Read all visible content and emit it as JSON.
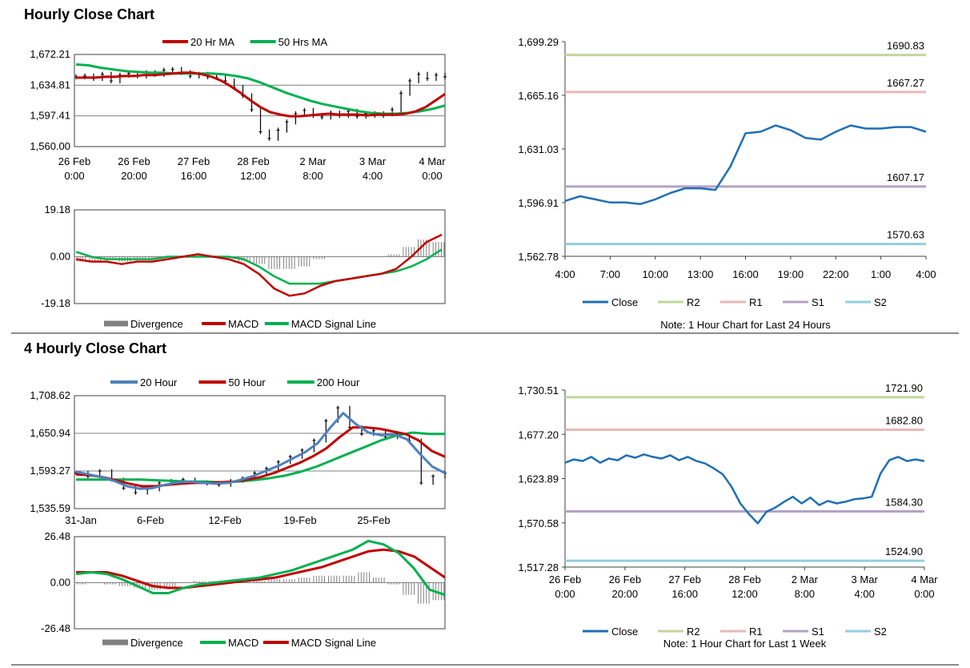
{
  "sections": {
    "hourly_title": "Hourly Close Chart",
    "four_hourly_title": "4 Hourly Close Chart"
  },
  "colors": {
    "ma20": "#c00000",
    "ma50": "#00b050",
    "ma20_blue": "#4f81bd",
    "close": "#1f6fb4",
    "r2": "#c3d69b",
    "r1": "#e6b9b8",
    "s1": "#b3a2c7",
    "s2": "#93cddd",
    "divergence": "#808080",
    "grid": "#808080"
  },
  "chart_data": [
    {
      "id": "hourly-price",
      "type": "line",
      "legend": [
        {
          "name": "20 Hr MA",
          "color": "#c00000"
        },
        {
          "name": "50 Hrs MA",
          "color": "#00b050"
        }
      ],
      "y_ticks": [
        "1,672.21",
        "1,634.81",
        "1,597.41",
        "1,560.00"
      ],
      "ylim": [
        1560.0,
        1672.21
      ],
      "x_ticks": [
        [
          "26 Feb",
          "0:00"
        ],
        [
          "26 Feb",
          "20:00"
        ],
        [
          "27 Feb",
          "16:00"
        ],
        [
          "28 Feb",
          "12:00"
        ],
        [
          "2 Mar",
          "8:00"
        ],
        [
          "3 Mar",
          "4:00"
        ],
        [
          "4 Mar",
          "0:00"
        ]
      ],
      "series": [
        {
          "name": "Close",
          "values": [
            1645,
            1646,
            1643,
            1648,
            1640,
            1647,
            1649,
            1646,
            1650,
            1648,
            1653,
            1654,
            1650,
            1646,
            1648,
            1645,
            1644,
            1640,
            1632,
            1622,
            1605,
            1578,
            1570,
            1580,
            1590,
            1600,
            1604,
            1598,
            1596,
            1601,
            1598,
            1603,
            1597,
            1600,
            1598,
            1600,
            1605,
            1625,
            1640,
            1648,
            1643,
            1647,
            1645
          ]
        },
        {
          "name": "20 Hr MA",
          "values": [
            1644,
            1644,
            1644,
            1645,
            1645,
            1646,
            1646,
            1647,
            1647,
            1648,
            1649,
            1650,
            1650,
            1648,
            1645,
            1640,
            1633,
            1625,
            1616,
            1608,
            1602,
            1599,
            1597,
            1597,
            1598,
            1599,
            1600,
            1599,
            1599,
            1599,
            1598,
            1599,
            1599,
            1599,
            1600,
            1603,
            1608,
            1616,
            1624
          ]
        },
        {
          "name": "50 Hrs MA",
          "values": [
            1660,
            1659,
            1656,
            1654,
            1652,
            1651,
            1650,
            1650,
            1649,
            1649,
            1649,
            1649,
            1648,
            1646,
            1643,
            1638,
            1632,
            1626,
            1621,
            1616,
            1612,
            1609,
            1606,
            1603,
            1601,
            1600,
            1600,
            1601,
            1603,
            1606,
            1610
          ]
        }
      ]
    },
    {
      "id": "hourly-macd",
      "type": "line",
      "legend": [
        {
          "name": "Divergence",
          "color": "#808080"
        },
        {
          "name": "MACD",
          "color": "#c00000"
        },
        {
          "name": "MACD Signal Line",
          "color": "#00b050"
        }
      ],
      "y_ticks": [
        "19.18",
        "0.00",
        "-19.18"
      ],
      "ylim": [
        -19.18,
        19.18
      ],
      "series": [
        {
          "name": "MACD",
          "values": [
            -1,
            -2,
            -2,
            -3,
            -2,
            -2,
            -1,
            0,
            1,
            0,
            -1,
            -3,
            -7,
            -13,
            -16,
            -15,
            -12,
            -10,
            -9,
            -8,
            -7,
            -5,
            0,
            6,
            9
          ]
        },
        {
          "name": "MACD Signal Line",
          "values": [
            2,
            0,
            -1,
            -1,
            -1,
            -1,
            0,
            0,
            0,
            0,
            0,
            -1,
            -4,
            -8,
            -11,
            -11,
            -11,
            -10,
            -9,
            -8,
            -7,
            -6,
            -4,
            -1,
            3
          ]
        },
        {
          "name": "Divergence",
          "values": [
            -2,
            -2,
            -1,
            -2,
            -1,
            -1,
            -1,
            0,
            1,
            0,
            -1,
            -2,
            -3,
            -5,
            -5,
            -4,
            -1,
            0,
            0,
            0,
            0,
            1,
            4,
            7,
            6
          ]
        }
      ]
    },
    {
      "id": "hourly-levels",
      "type": "line",
      "y_ticks": [
        "1,699.29",
        "1,665.16",
        "1,631.03",
        "1,596.91",
        "1,562.78"
      ],
      "ylim": [
        1562.78,
        1699.29
      ],
      "x_ticks": [
        "4:00",
        "7:00",
        "10:00",
        "13:00",
        "16:00",
        "19:00",
        "22:00",
        "1:00",
        "4:00"
      ],
      "x": [
        "4:00",
        "5:00",
        "6:00",
        "7:00",
        "8:00",
        "9:00",
        "10:00",
        "11:00",
        "12:00",
        "13:00",
        "14:00",
        "15:00",
        "16:00",
        "17:00",
        "18:00",
        "19:00",
        "20:00",
        "21:00",
        "22:00",
        "23:00",
        "0:00",
        "1:00",
        "2:00",
        "3:00",
        "4:00"
      ],
      "series": [
        {
          "name": "Close",
          "values": [
            1598,
            1601,
            1599,
            1597,
            1597,
            1596,
            1599,
            1603,
            1606,
            1606,
            1605,
            1620,
            1641,
            1642,
            1646,
            1643,
            1638,
            1637,
            1642,
            1646,
            1644,
            1644,
            1645,
            1645,
            1642
          ]
        }
      ],
      "levels": [
        {
          "name": "R2",
          "value": 1690.83,
          "label": "1690.83"
        },
        {
          "name": "R1",
          "value": 1667.27,
          "label": "1667.27"
        },
        {
          "name": "S1",
          "value": 1607.17,
          "label": "1607.17"
        },
        {
          "name": "S2",
          "value": 1570.63,
          "label": "1570.63"
        }
      ],
      "legend": [
        {
          "name": "Close"
        },
        {
          "name": "R2"
        },
        {
          "name": "R1"
        },
        {
          "name": "S1"
        },
        {
          "name": "S2"
        }
      ],
      "note": "Note: 1 Hour Chart for Last 24 Hours"
    },
    {
      "id": "four-hourly-price",
      "type": "line",
      "legend": [
        {
          "name": "20 Hour",
          "color": "#4f81bd"
        },
        {
          "name": "50 Hour",
          "color": "#c00000"
        },
        {
          "name": "200 Hour",
          "color": "#00b050"
        }
      ],
      "y_ticks": [
        "1,708.62",
        "1,650.94",
        "1,593.27",
        "1,535.59"
      ],
      "ylim": [
        1535.59,
        1708.62
      ],
      "x_ticks": [
        "31-Jan",
        "6-Feb",
        "12-Feb",
        "19-Feb",
        "25-Feb"
      ],
      "series": [
        {
          "name": "Close",
          "values": [
            1590,
            1585,
            1593,
            1580,
            1567,
            1560,
            1565,
            1575,
            1578,
            1580,
            1576,
            1574,
            1572,
            1578,
            1582,
            1590,
            1597,
            1607,
            1615,
            1625,
            1640,
            1670,
            1690,
            1660,
            1650,
            1655,
            1645,
            1650,
            1640,
            1575,
            1585,
            1590
          ]
        },
        {
          "name": "20 Hour",
          "values": [
            1592,
            1588,
            1584,
            1578,
            1570,
            1566,
            1567,
            1572,
            1576,
            1577,
            1575,
            1574,
            1575,
            1580,
            1586,
            1594,
            1602,
            1612,
            1622,
            1636,
            1660,
            1682,
            1665,
            1652,
            1648,
            1649,
            1642,
            1620,
            1600,
            1590
          ]
        },
        {
          "name": "50 Hour",
          "values": [
            1588,
            1587,
            1584,
            1579,
            1574,
            1570,
            1570,
            1572,
            1574,
            1575,
            1575,
            1576,
            1577,
            1580,
            1584,
            1590,
            1598,
            1606,
            1616,
            1628,
            1645,
            1660,
            1660,
            1658,
            1654,
            1650,
            1640,
            1624,
            1615
          ]
        },
        {
          "name": "200 Hour",
          "values": [
            1580,
            1580,
            1580,
            1580,
            1580,
            1579,
            1578,
            1577,
            1577,
            1576,
            1577,
            1579,
            1582,
            1586,
            1592,
            1600,
            1610,
            1620,
            1630,
            1640,
            1648,
            1652,
            1650,
            1650
          ]
        }
      ]
    },
    {
      "id": "four-hourly-macd",
      "type": "line",
      "legend": [
        {
          "name": "Divergence",
          "color": "#808080"
        },
        {
          "name": "MACD",
          "color": "#00b050"
        },
        {
          "name": "MACD Signal Line",
          "color": "#c00000"
        }
      ],
      "y_ticks": [
        "26.48",
        "0.00",
        "-26.48"
      ],
      "ylim": [
        -26.48,
        26.48
      ],
      "series": [
        {
          "name": "MACD",
          "values": [
            5,
            6,
            5,
            2,
            -2,
            -6,
            -6,
            -3,
            -1,
            0,
            1,
            2,
            3,
            5,
            7,
            10,
            13,
            16,
            19,
            24,
            22,
            17,
            8,
            -4,
            -7
          ]
        },
        {
          "name": "MACD Signal Line",
          "values": [
            6,
            6,
            6,
            4,
            1,
            -2,
            -3,
            -3,
            -2,
            -1,
            0,
            1,
            2,
            3,
            5,
            7,
            9,
            12,
            15,
            18,
            19,
            18,
            15,
            9,
            3
          ]
        },
        {
          "name": "Divergence",
          "values": [
            -1,
            0,
            -1,
            -2,
            -3,
            -4,
            -3,
            0,
            1,
            1,
            1,
            1,
            1,
            2,
            2,
            3,
            4,
            4,
            4,
            6,
            3,
            -1,
            -7,
            -12,
            -10
          ]
        }
      ]
    },
    {
      "id": "four-hourly-levels",
      "type": "line",
      "y_ticks": [
        "1,730.51",
        "1,677.20",
        "1,623.89",
        "1,570.58",
        "1,517.28"
      ],
      "ylim": [
        1517.28,
        1730.51
      ],
      "x_ticks": [
        [
          "26 Feb",
          "0:00"
        ],
        [
          "26 Feb",
          "20:00"
        ],
        [
          "27 Feb",
          "16:00"
        ],
        [
          "28 Feb",
          "12:00"
        ],
        [
          "2 Mar",
          "8:00"
        ],
        [
          "3 Mar",
          "4:00"
        ],
        [
          "4 Mar",
          "0:00"
        ]
      ],
      "series": [
        {
          "name": "Close",
          "values": [
            1643,
            1647,
            1645,
            1650,
            1643,
            1648,
            1646,
            1652,
            1649,
            1653,
            1650,
            1648,
            1652,
            1646,
            1650,
            1645,
            1642,
            1636,
            1629,
            1614,
            1594,
            1581,
            1570,
            1584,
            1589,
            1596,
            1602,
            1594,
            1601,
            1592,
            1597,
            1594,
            1596,
            1599,
            1600,
            1602,
            1630,
            1646,
            1650,
            1645,
            1647,
            1645
          ]
        }
      ],
      "levels": [
        {
          "name": "R2",
          "value": 1721.9,
          "label": "1721.90"
        },
        {
          "name": "R1",
          "value": 1682.8,
          "label": "1682.80"
        },
        {
          "name": "S1",
          "value": 1584.3,
          "label": "1584.30"
        },
        {
          "name": "S2",
          "value": 1524.9,
          "label": "1524.90"
        }
      ],
      "legend": [
        {
          "name": "Close"
        },
        {
          "name": "R2"
        },
        {
          "name": "R1"
        },
        {
          "name": "S1"
        },
        {
          "name": "S2"
        }
      ],
      "note": "Note: 1 Hour Chart for Last 1 Week"
    }
  ]
}
